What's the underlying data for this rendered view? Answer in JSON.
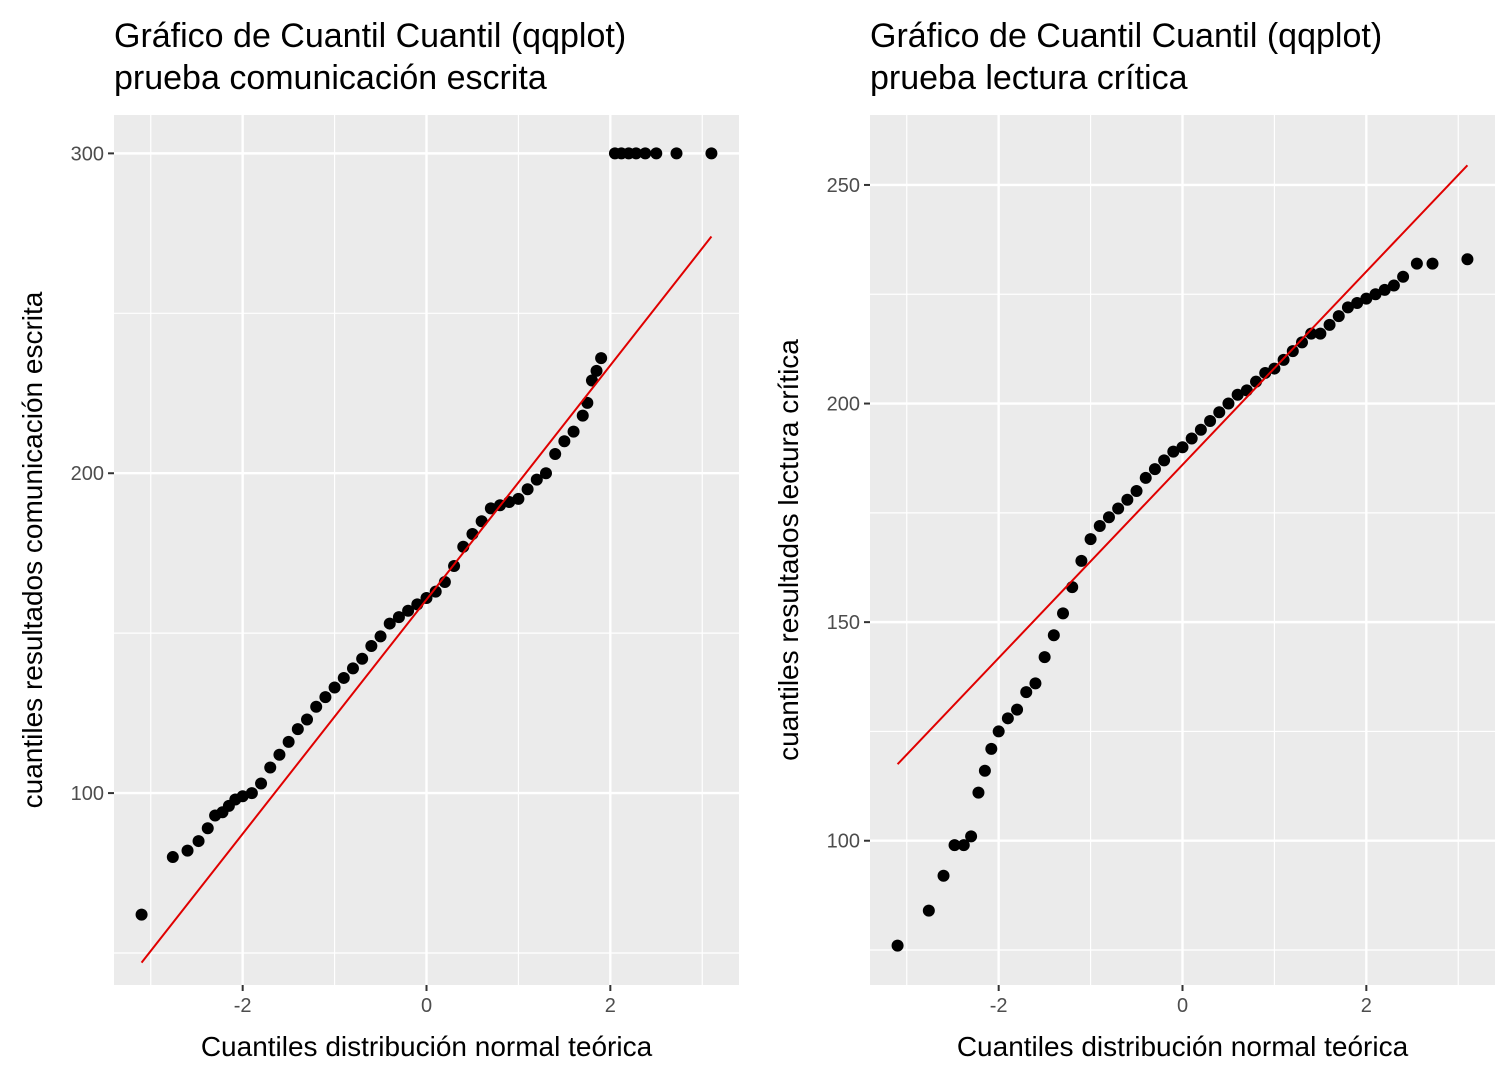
{
  "chart_data": [
    {
      "type": "scatter",
      "title_line1": "Gráfico de Cuantil Cuantil (qqplot)",
      "title_line2": "prueba comunicación escrita",
      "xlabel": "Cuantiles distribución normal teórica",
      "ylabel": "cuantiles resultados comunicación escrita",
      "xlim": [
        -3.4,
        3.4
      ],
      "ylim": [
        40,
        312
      ],
      "x_ticks": [
        -2,
        0,
        2
      ],
      "x_tick_labels": [
        "-2",
        "0",
        "2"
      ],
      "y_ticks": [
        100,
        200,
        300
      ],
      "y_tick_labels": [
        "100",
        "200",
        "300"
      ],
      "grid": true,
      "point_color": "#000000",
      "line_color": "#e00000",
      "reference_line": {
        "x": [
          -3.1,
          3.1
        ],
        "y": [
          47,
          274
        ]
      },
      "points": {
        "x": [
          -3.1,
          -2.76,
          -2.6,
          -2.48,
          -2.38,
          -2.3,
          -2.22,
          -2.15,
          -2.08,
          -2.0,
          -1.9,
          -1.8,
          -1.7,
          -1.6,
          -1.5,
          -1.4,
          -1.3,
          -1.2,
          -1.1,
          -1.0,
          -0.9,
          -0.8,
          -0.7,
          -0.6,
          -0.5,
          -0.4,
          -0.3,
          -0.2,
          -0.1,
          0.0,
          0.1,
          0.2,
          0.3,
          0.4,
          0.5,
          0.6,
          0.7,
          0.8,
          0.9,
          1.0,
          1.1,
          1.2,
          1.3,
          1.4,
          1.5,
          1.6,
          1.7,
          1.75,
          1.8,
          1.85,
          1.9,
          2.05,
          2.12,
          2.2,
          2.28,
          2.38,
          2.5,
          2.72,
          3.1
        ],
        "y": [
          62,
          80,
          82,
          85,
          89,
          93,
          94,
          96,
          98,
          99,
          100,
          103,
          108,
          112,
          116,
          120,
          123,
          127,
          130,
          133,
          136,
          139,
          142,
          146,
          149,
          153,
          155,
          157,
          159,
          161,
          163,
          166,
          171,
          177,
          181,
          185,
          189,
          190,
          191,
          192,
          195,
          198,
          200,
          206,
          210,
          213,
          218,
          222,
          229,
          232,
          236,
          300,
          300,
          300,
          300,
          300,
          300,
          300,
          300
        ]
      }
    },
    {
      "type": "scatter",
      "title_line1": "Gráfico de Cuantil Cuantil (qqplot)",
      "title_line2": "prueba lectura crítica",
      "xlabel": "Cuantiles distribución normal teórica",
      "ylabel": "cuantiles resultados lectura crítica",
      "xlim": [
        -3.4,
        3.4
      ],
      "ylim": [
        67,
        266
      ],
      "x_ticks": [
        -2,
        0,
        2
      ],
      "x_tick_labels": [
        "-2",
        "0",
        "2"
      ],
      "y_ticks": [
        100,
        150,
        200,
        250
      ],
      "y_tick_labels": [
        "100",
        "150",
        "200",
        "250"
      ],
      "grid": true,
      "point_color": "#000000",
      "line_color": "#e00000",
      "reference_line": {
        "x": [
          -3.1,
          3.1
        ],
        "y": [
          117.5,
          254.5
        ]
      },
      "points": {
        "x": [
          -3.1,
          -2.76,
          -2.6,
          -2.48,
          -2.38,
          -2.3,
          -2.22,
          -2.15,
          -2.08,
          -2.0,
          -1.9,
          -1.8,
          -1.7,
          -1.6,
          -1.5,
          -1.4,
          -1.3,
          -1.2,
          -1.1,
          -1.0,
          -0.9,
          -0.8,
          -0.7,
          -0.6,
          -0.5,
          -0.4,
          -0.3,
          -0.2,
          -0.1,
          0.0,
          0.1,
          0.2,
          0.3,
          0.4,
          0.5,
          0.6,
          0.7,
          0.8,
          0.9,
          1.0,
          1.1,
          1.2,
          1.3,
          1.4,
          1.5,
          1.6,
          1.7,
          1.8,
          1.9,
          2.0,
          2.1,
          2.2,
          2.3,
          2.4,
          2.55,
          2.72,
          3.1
        ],
        "y": [
          76,
          84,
          92,
          99,
          99,
          101,
          111,
          116,
          121,
          125,
          128,
          130,
          134,
          136,
          142,
          147,
          152,
          158,
          164,
          169,
          172,
          174,
          176,
          178,
          180,
          183,
          185,
          187,
          189,
          190,
          192,
          194,
          196,
          198,
          200,
          202,
          203,
          205,
          207,
          208,
          210,
          212,
          214,
          216,
          216,
          218,
          220,
          222,
          223,
          224,
          225,
          226,
          227,
          229,
          232,
          232,
          233
        ]
      }
    }
  ]
}
